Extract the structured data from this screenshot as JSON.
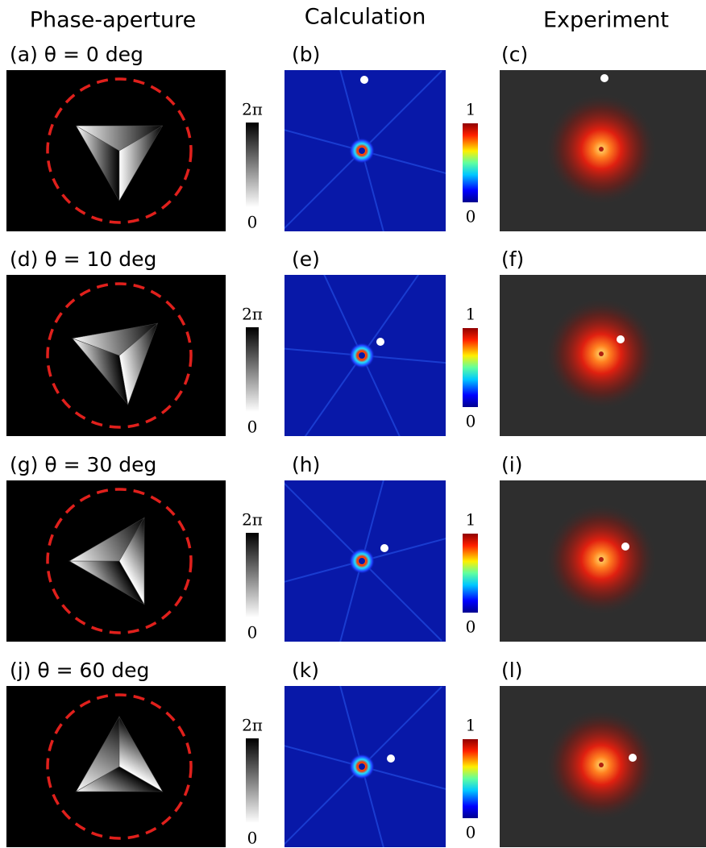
{
  "headers": {
    "phase": "Phase-aperture",
    "calculation": "Calculation",
    "experiment": "Experiment"
  },
  "phase_colorbar": {
    "top": "2π",
    "bottom": 0
  },
  "intensity_colorbar": {
    "top": 1,
    "bottom": 0
  },
  "rows": [
    {
      "phase_label": "(a) θ = 0 deg",
      "calc_label": "(b)",
      "exp_label": "(c)"
    },
    {
      "phase_label": "(d) θ = 10 deg",
      "calc_label": "(e)",
      "exp_label": "(f)"
    },
    {
      "phase_label": "(g) θ = 30 deg",
      "calc_label": "(h)",
      "exp_label": "(i)"
    },
    {
      "phase_label": "(j) θ = 60 deg",
      "calc_label": "(k)",
      "exp_label": "(l)"
    }
  ]
}
